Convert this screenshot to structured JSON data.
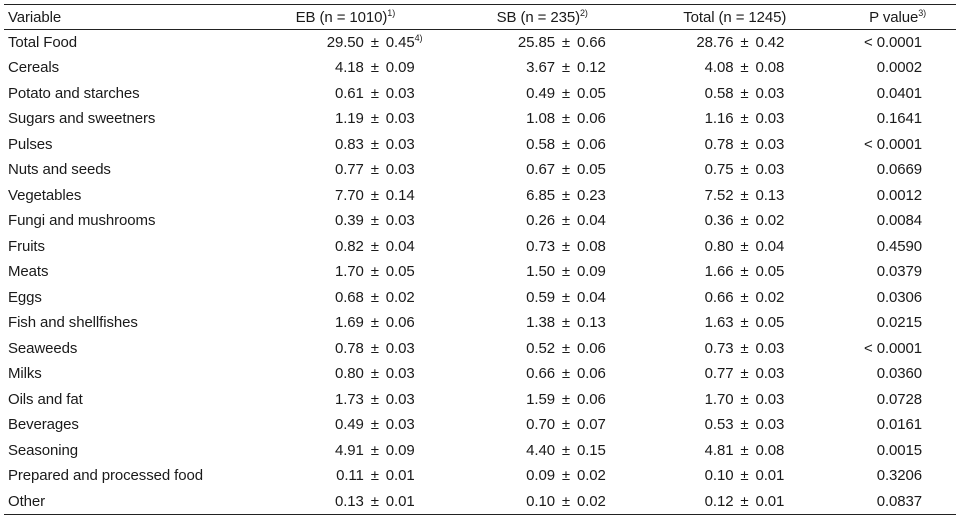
{
  "table": {
    "headers": {
      "variable": "Variable",
      "eb": "EB (n = 1010)",
      "eb_note": "1)",
      "sb": "SB (n = 235)",
      "sb_note": "2)",
      "total": "Total (n = 1245)",
      "p": "P value",
      "p_note": "3)"
    },
    "pm_symbol": "±",
    "first_cell_note": "4)",
    "rows": [
      {
        "variable": "Total Food",
        "eb_mean": "29.50",
        "eb_se": "0.45",
        "sb_mean": "25.85",
        "sb_se": "0.66",
        "total_mean": "28.76",
        "total_se": "0.42",
        "p": "< 0.0001"
      },
      {
        "variable": "Cereals",
        "eb_mean": "4.18",
        "eb_se": "0.09",
        "sb_mean": "3.67",
        "sb_se": "0.12",
        "total_mean": "4.08",
        "total_se": "0.08",
        "p": "0.0002"
      },
      {
        "variable": "Potato and starches",
        "eb_mean": "0.61",
        "eb_se": "0.03",
        "sb_mean": "0.49",
        "sb_se": "0.05",
        "total_mean": "0.58",
        "total_se": "0.03",
        "p": "0.0401"
      },
      {
        "variable": "Sugars and sweetners",
        "eb_mean": "1.19",
        "eb_se": "0.03",
        "sb_mean": "1.08",
        "sb_se": "0.06",
        "total_mean": "1.16",
        "total_se": "0.03",
        "p": "0.1641"
      },
      {
        "variable": "Pulses",
        "eb_mean": "0.83",
        "eb_se": "0.03",
        "sb_mean": "0.58",
        "sb_se": "0.06",
        "total_mean": "0.78",
        "total_se": "0.03",
        "p": "< 0.0001"
      },
      {
        "variable": "Nuts and seeds",
        "eb_mean": "0.77",
        "eb_se": "0.03",
        "sb_mean": "0.67",
        "sb_se": "0.05",
        "total_mean": "0.75",
        "total_se": "0.03",
        "p": "0.0669"
      },
      {
        "variable": "Vegetables",
        "eb_mean": "7.70",
        "eb_se": "0.14",
        "sb_mean": "6.85",
        "sb_se": "0.23",
        "total_mean": "7.52",
        "total_se": "0.13",
        "p": "0.0012"
      },
      {
        "variable": "Fungi and mushrooms",
        "eb_mean": "0.39",
        "eb_se": "0.03",
        "sb_mean": "0.26",
        "sb_se": "0.04",
        "total_mean": "0.36",
        "total_se": "0.02",
        "p": "0.0084"
      },
      {
        "variable": "Fruits",
        "eb_mean": "0.82",
        "eb_se": "0.04",
        "sb_mean": "0.73",
        "sb_se": "0.08",
        "total_mean": "0.80",
        "total_se": "0.04",
        "p": "0.4590"
      },
      {
        "variable": "Meats",
        "eb_mean": "1.70",
        "eb_se": "0.05",
        "sb_mean": "1.50",
        "sb_se": "0.09",
        "total_mean": "1.66",
        "total_se": "0.05",
        "p": "0.0379"
      },
      {
        "variable": "Eggs",
        "eb_mean": "0.68",
        "eb_se": "0.02",
        "sb_mean": "0.59",
        "sb_se": "0.04",
        "total_mean": "0.66",
        "total_se": "0.02",
        "p": "0.0306"
      },
      {
        "variable": "Fish and shellfishes",
        "eb_mean": "1.69",
        "eb_se": "0.06",
        "sb_mean": "1.38",
        "sb_se": "0.13",
        "total_mean": "1.63",
        "total_se": "0.05",
        "p": "0.0215"
      },
      {
        "variable": "Seaweeds",
        "eb_mean": "0.78",
        "eb_se": "0.03",
        "sb_mean": "0.52",
        "sb_se": "0.06",
        "total_mean": "0.73",
        "total_se": "0.03",
        "p": "< 0.0001"
      },
      {
        "variable": "Milks",
        "eb_mean": "0.80",
        "eb_se": "0.03",
        "sb_mean": "0.66",
        "sb_se": "0.06",
        "total_mean": "0.77",
        "total_se": "0.03",
        "p": "0.0360"
      },
      {
        "variable": "Oils and fat",
        "eb_mean": "1.73",
        "eb_se": "0.03",
        "sb_mean": "1.59",
        "sb_se": "0.06",
        "total_mean": "1.70",
        "total_se": "0.03",
        "p": "0.0728"
      },
      {
        "variable": "Beverages",
        "eb_mean": "0.49",
        "eb_se": "0.03",
        "sb_mean": "0.70",
        "sb_se": "0.07",
        "total_mean": "0.53",
        "total_se": "0.03",
        "p": "0.0161"
      },
      {
        "variable": "Seasoning",
        "eb_mean": "4.91",
        "eb_se": "0.09",
        "sb_mean": "4.40",
        "sb_se": "0.15",
        "total_mean": "4.81",
        "total_se": "0.08",
        "p": "0.0015"
      },
      {
        "variable": "Prepared and processed food",
        "eb_mean": "0.11",
        "eb_se": "0.01",
        "sb_mean": "0.09",
        "sb_se": "0.02",
        "total_mean": "0.10",
        "total_se": "0.01",
        "p": "0.3206"
      },
      {
        "variable": "Other",
        "eb_mean": "0.13",
        "eb_se": "0.01",
        "sb_mean": "0.10",
        "sb_se": "0.02",
        "total_mean": "0.12",
        "total_se": "0.01",
        "p": "0.0837"
      }
    ]
  }
}
